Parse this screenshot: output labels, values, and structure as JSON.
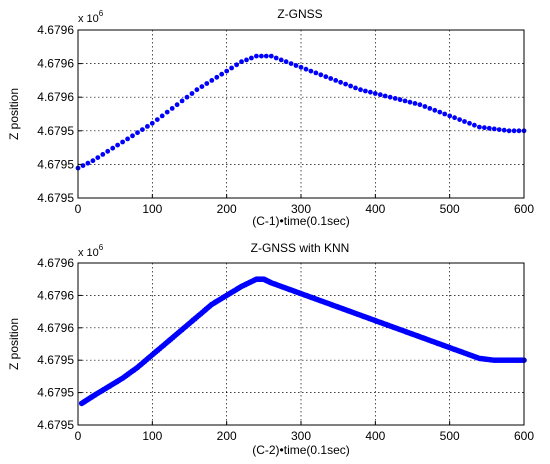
{
  "chart_data": [
    {
      "type": "scatter",
      "title": "Z-GNSS",
      "xlabel": "(C-1)•time(0.1sec)",
      "ylabel": "Z position",
      "exponent_label": "x 10",
      "exponent_power": "6",
      "xlim": [
        0,
        600
      ],
      "ylim": [
        4679520,
        4679610
      ],
      "xticks": [
        "0",
        "100",
        "200",
        "300",
        "400",
        "500",
        "600"
      ],
      "yticks": [
        "4.6795",
        "4.6795",
        "4.6795",
        "4.6796",
        "4.6796",
        "4.6796"
      ],
      "grid": true,
      "marker_color": "#0000ff",
      "series": [
        {
          "x": [
            0,
            20,
            40,
            60,
            80,
            100,
            120,
            140,
            160,
            180,
            200,
            220,
            240,
            260,
            280,
            300,
            320,
            340,
            360,
            380,
            400,
            420,
            440,
            460,
            480,
            500,
            520,
            540,
            560,
            580,
            600
          ],
          "y": [
            4679536,
            4679540,
            4679545,
            4679550,
            4679555,
            4679560,
            4679566,
            4679572,
            4679578,
            4679583,
            4679588,
            4679593,
            4679596,
            4679596,
            4679593,
            4679590,
            4679587,
            4679584,
            4679581,
            4679578,
            4679576,
            4679574,
            4679572,
            4679570,
            4679567,
            4679564,
            4679561,
            4679558,
            4679557,
            4679556,
            4679556
          ]
        }
      ]
    },
    {
      "type": "scatter",
      "title": "Z-GNSS with KNN",
      "xlabel": "(C-2)•time(0.1sec)",
      "ylabel": "Z position",
      "exponent_label": "x 10",
      "exponent_power": "6",
      "xlim": [
        0,
        600
      ],
      "ylim": [
        4679520,
        4679610
      ],
      "xticks": [
        "0",
        "100",
        "200",
        "300",
        "400",
        "500",
        "600"
      ],
      "yticks": [
        "4.6795",
        "4.6795",
        "4.6795",
        "4.6796",
        "4.6796",
        "4.6796"
      ],
      "grid": true,
      "marker_color": "#0000ff",
      "series": [
        {
          "x": [
            5,
            20,
            40,
            60,
            80,
            100,
            120,
            140,
            160,
            180,
            200,
            220,
            240,
            250,
            260,
            280,
            300,
            320,
            340,
            360,
            380,
            400,
            420,
            440,
            460,
            480,
            500,
            520,
            540,
            560,
            580,
            600
          ],
          "y": [
            4679532,
            4679536,
            4679541,
            4679546,
            4679552,
            4679559,
            4679566,
            4679573,
            4679580,
            4679587,
            4679592,
            4679597,
            4679601,
            4679601,
            4679599,
            4679596,
            4679593,
            4679590,
            4679587,
            4679584,
            4679581,
            4679578,
            4679575,
            4679572,
            4679569,
            4679566,
            4679563,
            4679560,
            4679557,
            4679556,
            4679556,
            4679556
          ]
        }
      ]
    }
  ]
}
